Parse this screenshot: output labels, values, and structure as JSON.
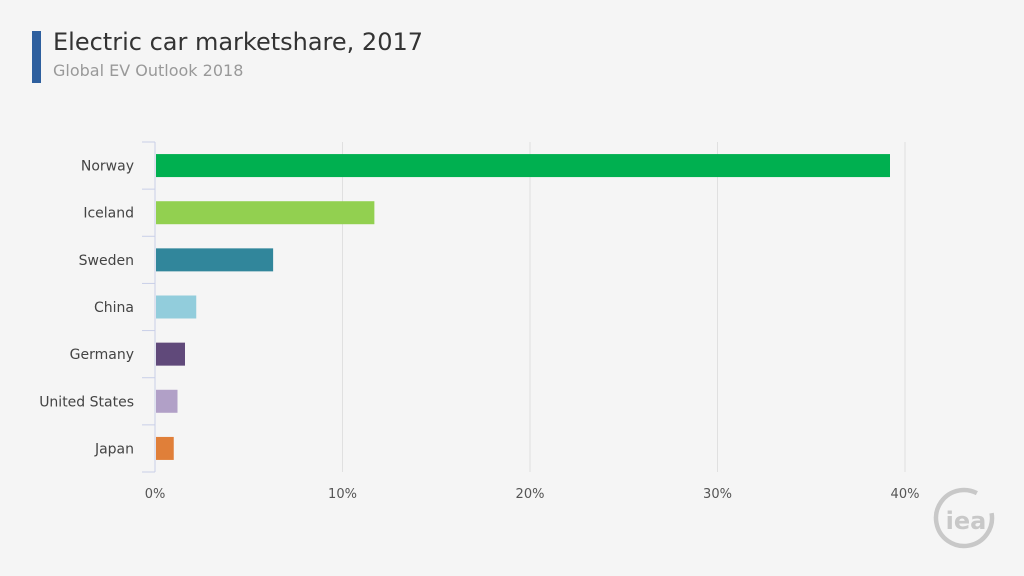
{
  "header": {
    "title": "Electric car marketshare, 2017",
    "subtitle": "Global EV Outlook 2018"
  },
  "logo": {
    "text": "iea"
  },
  "colors": {
    "title_accent": "#2e5f9e",
    "bars": [
      "#00b050",
      "#92d050",
      "#31869b",
      "#92cddc",
      "#60497a",
      "#b1a0c7",
      "#e07f39"
    ]
  },
  "chart_data": {
    "type": "bar",
    "orientation": "horizontal",
    "title": "Electric car marketshare, 2017",
    "subtitle": "Global EV Outlook 2018",
    "categories": [
      "Norway",
      "Iceland",
      "Sweden",
      "China",
      "Germany",
      "United States",
      "Japan"
    ],
    "values": [
      39.2,
      11.7,
      6.3,
      2.2,
      1.6,
      1.2,
      1.0
    ],
    "xlim": [
      0,
      40
    ],
    "xticks": [
      "0%",
      "10%",
      "20%",
      "30%",
      "40%"
    ],
    "tick_values": [
      0,
      10,
      20,
      30,
      40
    ],
    "grid": "vertical",
    "legend": "none"
  }
}
